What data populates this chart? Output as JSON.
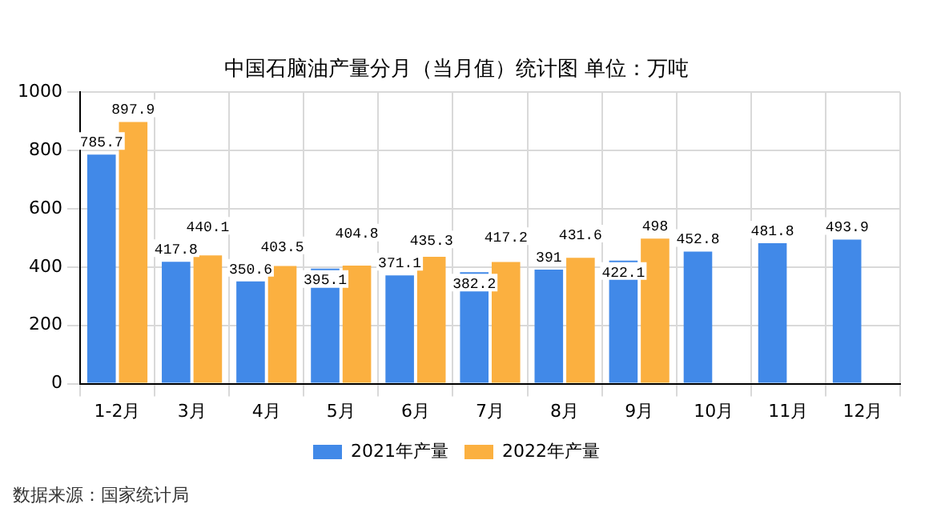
{
  "chart_data": {
    "type": "bar",
    "title": "中国石脑油产量分月（当月值）统计图 单位：万吨",
    "categories": [
      "1-2月",
      "3月",
      "4月",
      "5月",
      "6月",
      "7月",
      "8月",
      "9月",
      "10月",
      "11月",
      "12月"
    ],
    "series": [
      {
        "name": "2021年产量",
        "color": "#4189e8",
        "values": [
          785.7,
          417.8,
          350.6,
          395.1,
          371.1,
          382.2,
          391,
          422.1,
          452.8,
          481.8,
          493.9
        ]
      },
      {
        "name": "2022年产量",
        "color": "#fbb040",
        "values": [
          897.9,
          440.1,
          403.5,
          404.8,
          435.3,
          417.2,
          431.6,
          498,
          null,
          null,
          null
        ]
      }
    ],
    "ylim": [
      0,
      1000
    ],
    "yticks": [
      0,
      200,
      400,
      600,
      800,
      1000
    ],
    "grid": true,
    "legend": "bottom",
    "data_labels": true,
    "annotations": [
      "数据来源：国家统计局"
    ]
  }
}
